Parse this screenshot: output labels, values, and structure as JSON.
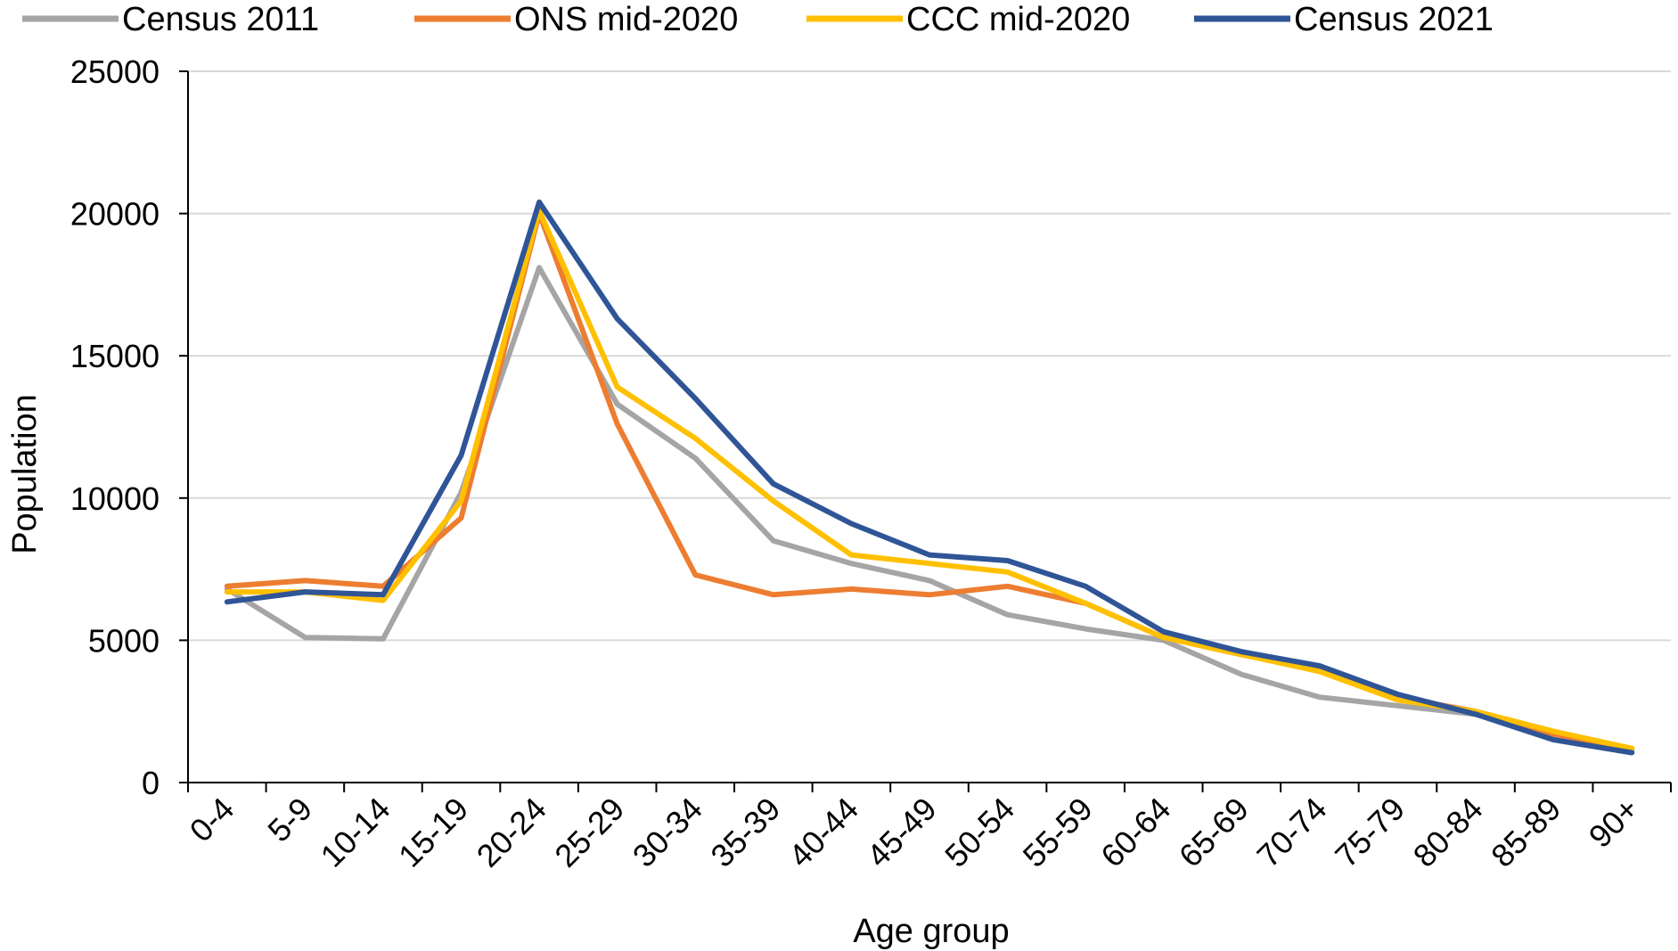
{
  "chart_data": {
    "type": "line",
    "title": "",
    "xlabel": "Age group",
    "ylabel": "Population",
    "ylim": [
      0,
      25000
    ],
    "yticks": [
      0,
      5000,
      10000,
      15000,
      20000,
      25000
    ],
    "grid": "horizontal",
    "legend_position": "top",
    "categories": [
      "0-4",
      "5-9",
      "10-14",
      "15-19",
      "20-24",
      "25-29",
      "30-34",
      "35-39",
      "40-44",
      "45-49",
      "50-54",
      "55-59",
      "60-64",
      "65-69",
      "70-74",
      "75-79",
      "80-84",
      "85-89",
      "90+"
    ],
    "series": [
      {
        "name": "Census 2011",
        "color": "#A5A5A5",
        "values": [
          6800,
          5100,
          5050,
          10200,
          18100,
          13300,
          11400,
          8500,
          7700,
          7100,
          5900,
          5400,
          5000,
          3800,
          3000,
          2700,
          2400,
          1600,
          1100
        ]
      },
      {
        "name": "ONS mid-2020",
        "color": "#ED7D31",
        "values": [
          6900,
          7100,
          6900,
          9300,
          20000,
          12600,
          7300,
          6600,
          6800,
          6600,
          6900,
          6300,
          5100,
          4500,
          4000,
          3000,
          2500,
          1700,
          1200
        ]
      },
      {
        "name": "CCC mid-2020",
        "color": "#FFC000",
        "values": [
          6700,
          6700,
          6400,
          9900,
          20100,
          13900,
          12100,
          9900,
          8000,
          7700,
          7400,
          6300,
          5100,
          4500,
          3900,
          2900,
          2500,
          1800,
          1200
        ]
      },
      {
        "name": "Census 2021",
        "color": "#2F5597",
        "values": [
          6350,
          6700,
          6600,
          11500,
          20400,
          16300,
          13500,
          10500,
          9100,
          8000,
          7800,
          6900,
          5300,
          4600,
          4100,
          3100,
          2400,
          1500,
          1050
        ]
      }
    ]
  }
}
